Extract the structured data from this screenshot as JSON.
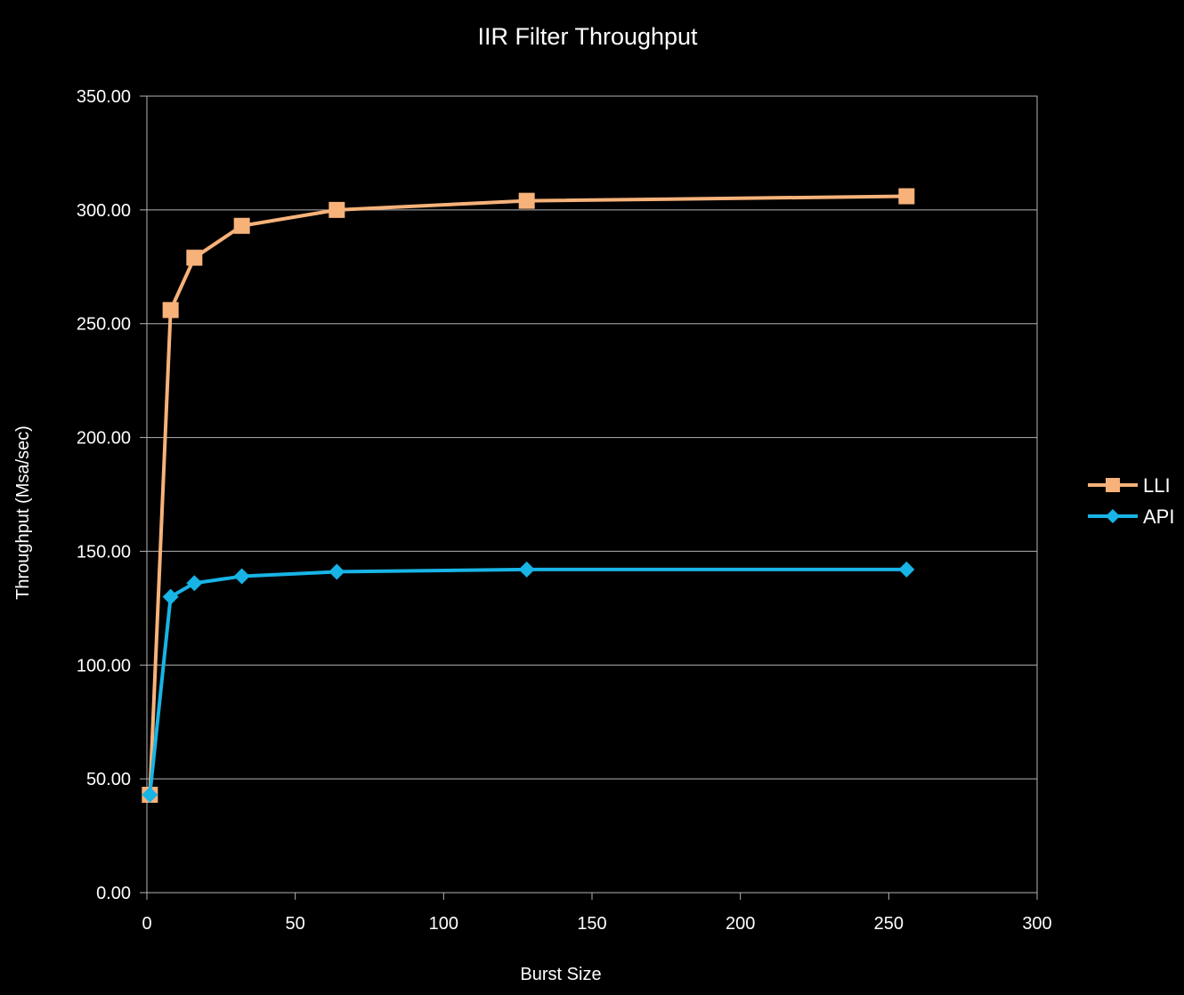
{
  "chart_data": {
    "type": "line",
    "title": "IIR Filter Throughput",
    "xlabel": "Burst Size",
    "ylabel": "Throughput (Msa/sec)",
    "xlim": [
      0,
      300
    ],
    "ylim": [
      0,
      350
    ],
    "x_ticks": [
      "0",
      "50",
      "100",
      "150",
      "200",
      "250",
      "300"
    ],
    "y_ticks": [
      "0.00",
      "50.00",
      "100.00",
      "150.00",
      "200.00",
      "250.00",
      "300.00",
      "350.00"
    ],
    "grid": "horizontal",
    "legend_position": "right",
    "x": [
      1,
      8,
      16,
      32,
      64,
      128,
      256
    ],
    "series": [
      {
        "name": "LLI",
        "marker": "square",
        "color": "#f7b27a",
        "values": [
          43,
          256,
          279,
          293,
          300,
          304,
          306
        ]
      },
      {
        "name": "API",
        "marker": "diamond",
        "color": "#18b4e6",
        "values": [
          43,
          130,
          136,
          139,
          141,
          142,
          142
        ]
      }
    ]
  }
}
